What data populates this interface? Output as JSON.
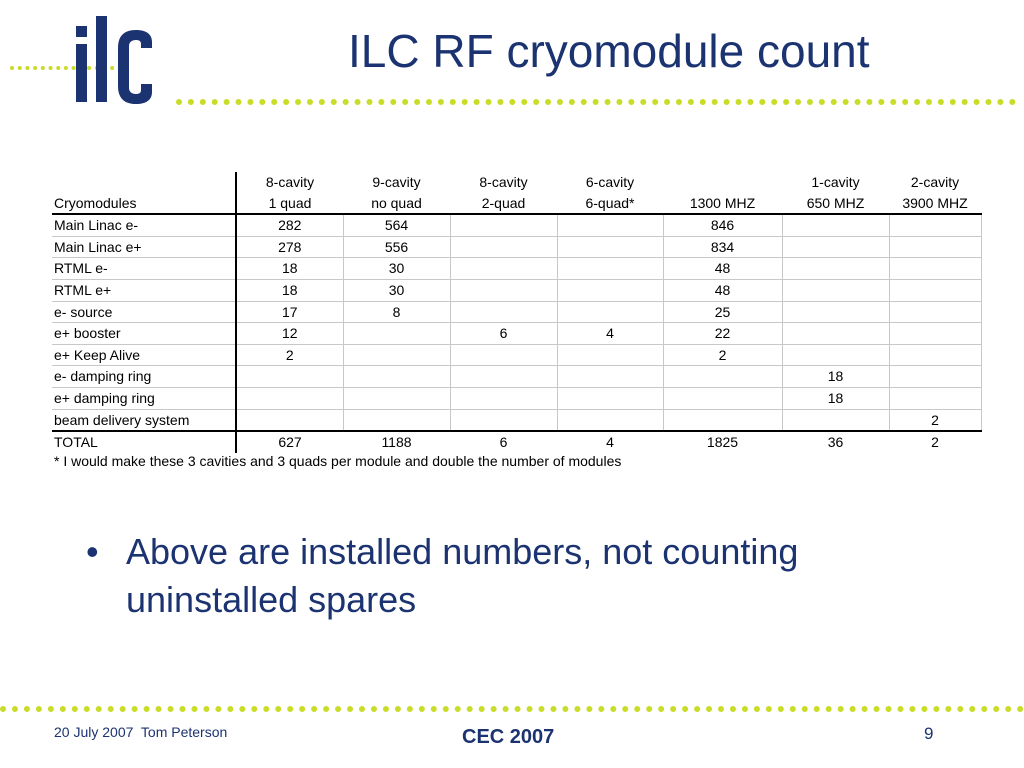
{
  "logo": {
    "text": "ilc",
    "brand_blue": "#1c3371",
    "accent_green": "#c8dc28"
  },
  "title": "ILC RF cryomodule count",
  "table": {
    "header_row1": [
      "",
      "8-cavity",
      "9-cavity",
      "8-cavity",
      "6-cavity",
      "",
      "1-cavity",
      "2-cavity"
    ],
    "header_row2": [
      "Cryomodules",
      "1 quad",
      "no quad",
      "2-quad",
      "6-quad*",
      "1300 MHZ",
      "650 MHZ",
      "3900 MHZ"
    ],
    "rows": [
      [
        "Main Linac e-",
        "282",
        "564",
        "",
        "",
        "846",
        "",
        ""
      ],
      [
        "Main Linac e+",
        "278",
        "556",
        "",
        "",
        "834",
        "",
        ""
      ],
      [
        "RTML e-",
        "18",
        "30",
        "",
        "",
        "48",
        "",
        ""
      ],
      [
        "RTML e+",
        "18",
        "30",
        "",
        "",
        "48",
        "",
        ""
      ],
      [
        "e- source",
        "17",
        "8",
        "",
        "",
        "25",
        "",
        ""
      ],
      [
        "e+ booster",
        "12",
        "",
        "6",
        "4",
        "22",
        "",
        ""
      ],
      [
        "e+ Keep Alive",
        "2",
        "",
        "",
        "",
        "2",
        "",
        ""
      ],
      [
        "e- damping ring",
        "",
        "",
        "",
        "",
        "",
        "18",
        ""
      ],
      [
        "e+ damping ring",
        "",
        "",
        "",
        "",
        "",
        "18",
        ""
      ],
      [
        "beam delivery system",
        "",
        "",
        "",
        "",
        "",
        "",
        "2"
      ]
    ],
    "total": [
      "TOTAL",
      "627",
      "1188",
      "6",
      "4",
      "1825",
      "36",
      "2"
    ]
  },
  "footnote": "* I would make these 3 cavities and 3 quads per module and double the number of modules",
  "bullet": {
    "symbol": "•",
    "text": "Above are installed numbers, not counting uninstalled spares"
  },
  "footer": {
    "left": "20 July 2007  Tom Peterson",
    "center": "CEC 2007",
    "page": "9"
  }
}
